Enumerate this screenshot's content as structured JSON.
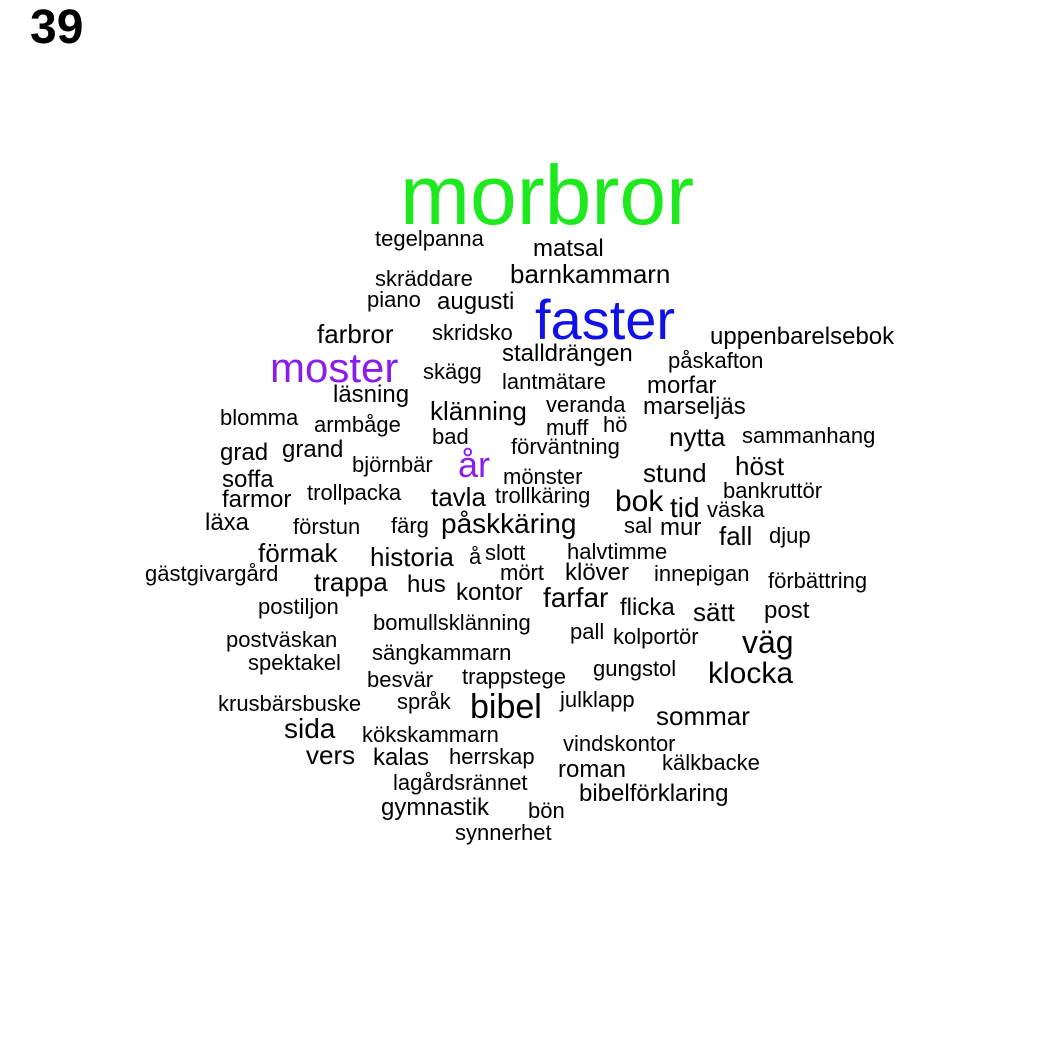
{
  "page_number": "39",
  "colors": {
    "green": "#1ee81e",
    "blue": "#1010e8",
    "purple": "#8a1ee8",
    "black": "#000000"
  },
  "words": [
    {
      "text": "morbror",
      "color": "green"
    },
    {
      "text": "faster",
      "color": "blue"
    },
    {
      "text": "moster",
      "color": "purple"
    },
    {
      "text": "år",
      "color": "purple"
    },
    {
      "text": "tegelpanna"
    },
    {
      "text": "matsal"
    },
    {
      "text": "barnkammarn"
    },
    {
      "text": "skräddare"
    },
    {
      "text": "piano"
    },
    {
      "text": "augusti"
    },
    {
      "text": "farbror"
    },
    {
      "text": "skridsko"
    },
    {
      "text": "uppenbarelsebok"
    },
    {
      "text": "stalldrängen"
    },
    {
      "text": "påskafton"
    },
    {
      "text": "skägg"
    },
    {
      "text": "lantmätare"
    },
    {
      "text": "morfar"
    },
    {
      "text": "läsning"
    },
    {
      "text": "blomma"
    },
    {
      "text": "armbåge"
    },
    {
      "text": "klänning"
    },
    {
      "text": "veranda"
    },
    {
      "text": "marseljäs"
    },
    {
      "text": "muff"
    },
    {
      "text": "hö"
    },
    {
      "text": "bad"
    },
    {
      "text": "nytta"
    },
    {
      "text": "sammanhang"
    },
    {
      "text": "grad"
    },
    {
      "text": "grand"
    },
    {
      "text": "förväntning"
    },
    {
      "text": "björnbär"
    },
    {
      "text": "höst"
    },
    {
      "text": "soffa"
    },
    {
      "text": "mönster"
    },
    {
      "text": "stund"
    },
    {
      "text": "trollpacka"
    },
    {
      "text": "bankruttör"
    },
    {
      "text": "farmor"
    },
    {
      "text": "tavla"
    },
    {
      "text": "trollkäring"
    },
    {
      "text": "bok"
    },
    {
      "text": "tid"
    },
    {
      "text": "väska"
    },
    {
      "text": "läxa"
    },
    {
      "text": "förstun"
    },
    {
      "text": "färg"
    },
    {
      "text": "påskkäring"
    },
    {
      "text": "sal"
    },
    {
      "text": "mur"
    },
    {
      "text": "fall"
    },
    {
      "text": "djup"
    },
    {
      "text": "förmak"
    },
    {
      "text": "historia"
    },
    {
      "text": "å"
    },
    {
      "text": "slott"
    },
    {
      "text": "halvtimme"
    },
    {
      "text": "gästgivargård"
    },
    {
      "text": "trappa"
    },
    {
      "text": "hus"
    },
    {
      "text": "mört"
    },
    {
      "text": "klöver"
    },
    {
      "text": "innepigan"
    },
    {
      "text": "förbättring"
    },
    {
      "text": "kontor"
    },
    {
      "text": "farfar"
    },
    {
      "text": "postiljon"
    },
    {
      "text": "flicka"
    },
    {
      "text": "sätt"
    },
    {
      "text": "post"
    },
    {
      "text": "bomullsklänning"
    },
    {
      "text": "pall"
    },
    {
      "text": "kolportör"
    },
    {
      "text": "väg"
    },
    {
      "text": "postväskan"
    },
    {
      "text": "sängkammarn"
    },
    {
      "text": "spektakel"
    },
    {
      "text": "gungstol"
    },
    {
      "text": "klocka"
    },
    {
      "text": "trappstege"
    },
    {
      "text": "besvär"
    },
    {
      "text": "krusbärsbuske"
    },
    {
      "text": "språk"
    },
    {
      "text": "julklapp"
    },
    {
      "text": "bibel"
    },
    {
      "text": "sommar"
    },
    {
      "text": "sida"
    },
    {
      "text": "kökskammarn"
    },
    {
      "text": "vindskontor"
    },
    {
      "text": "vers"
    },
    {
      "text": "kalas"
    },
    {
      "text": "herrskap"
    },
    {
      "text": "kälkbacke"
    },
    {
      "text": "roman"
    },
    {
      "text": "lagårdsrännet"
    },
    {
      "text": "bibelförklaring"
    },
    {
      "text": "gymnastik"
    },
    {
      "text": "bön"
    },
    {
      "text": "synnerhet"
    }
  ]
}
